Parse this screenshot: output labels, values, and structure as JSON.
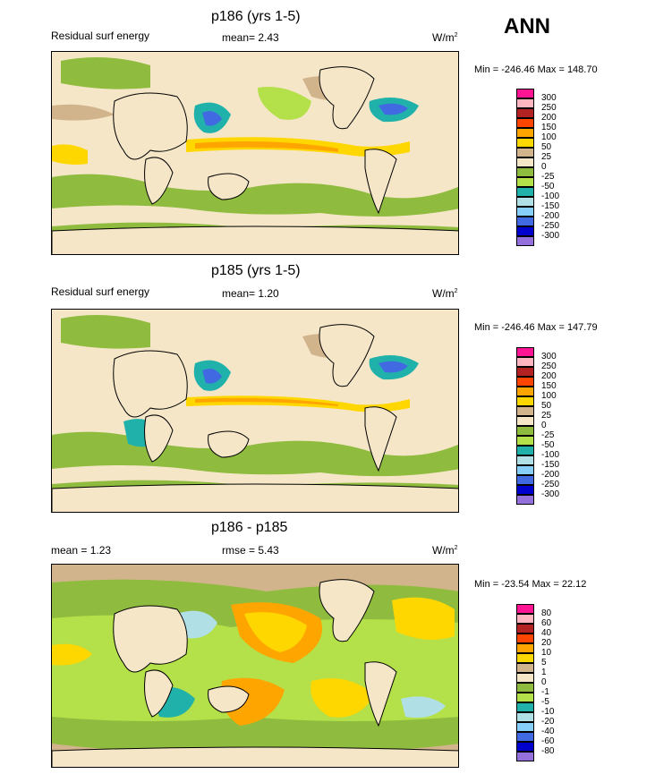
{
  "season_label": "ANN",
  "panels": [
    {
      "title": "p186 (yrs 1-5)",
      "field_label": "Residual surf energy",
      "stat_text": "mean=  2.43",
      "units": "W/m",
      "units_sup": "2",
      "range_text": "Min = -246.46 Max = 148.70",
      "colorbar_labels": [
        "300",
        "250",
        "200",
        "150",
        "100",
        "50",
        "25",
        "0",
        "-25",
        "-50",
        "-100",
        "-150",
        "-200",
        "-250",
        "-300"
      ]
    },
    {
      "title": "p185 (yrs 1-5)",
      "field_label": "Residual surf energy",
      "stat_text": "mean=   1.20",
      "units": "W/m",
      "units_sup": "2",
      "range_text": "Min = -246.46 Max = 147.79",
      "colorbar_labels": [
        "300",
        "250",
        "200",
        "150",
        "100",
        "50",
        "25",
        "0",
        "-25",
        "-50",
        "-100",
        "-150",
        "-200",
        "-250",
        "-300"
      ]
    },
    {
      "title": "p186 - p185",
      "mean_text": "mean =   1.23",
      "rmse_text": "rmse =   5.43",
      "units": "W/m",
      "units_sup": "2",
      "range_text": "Min = -23.54 Max =  22.12",
      "colorbar_labels": [
        "80",
        "60",
        "40",
        "20",
        "10",
        "5",
        "1",
        "0",
        "-1",
        "-5",
        "-10",
        "-20",
        "-40",
        "-60",
        "-80"
      ]
    }
  ],
  "colorbar_colors": [
    "#ff1493",
    "#ffb6c1",
    "#b22222",
    "#ff4500",
    "#ffa500",
    "#ffd700",
    "#d2b48c",
    "#f5e6c8",
    "#8fbc3f",
    "#b4e04a",
    "#20b2aa",
    "#b0e0e6",
    "#87cefa",
    "#4169e1",
    "#0000cd",
    "#9370db"
  ],
  "chart_data": [
    {
      "type": "heatmap",
      "title": "p186 (yrs 1-5)",
      "subtitle": "Residual surf energy",
      "mean": 2.43,
      "units": "W/m2",
      "min": -246.46,
      "max": 148.7,
      "contour_levels": [
        -300,
        -250,
        -200,
        -150,
        -100,
        -50,
        -25,
        0,
        25,
        50,
        100,
        150,
        200,
        250,
        300
      ]
    },
    {
      "type": "heatmap",
      "title": "p185 (yrs 1-5)",
      "subtitle": "Residual surf energy",
      "mean": 1.2,
      "units": "W/m2",
      "min": -246.46,
      "max": 147.79,
      "contour_levels": [
        -300,
        -250,
        -200,
        -150,
        -100,
        -50,
        -25,
        0,
        25,
        50,
        100,
        150,
        200,
        250,
        300
      ]
    },
    {
      "type": "heatmap",
      "title": "p186 - p185",
      "mean": 1.23,
      "rmse": 5.43,
      "units": "W/m2",
      "min": -23.54,
      "max": 22.12,
      "contour_levels": [
        -80,
        -60,
        -40,
        -20,
        -10,
        -5,
        -1,
        0,
        1,
        5,
        10,
        20,
        40,
        60,
        80
      ]
    }
  ]
}
